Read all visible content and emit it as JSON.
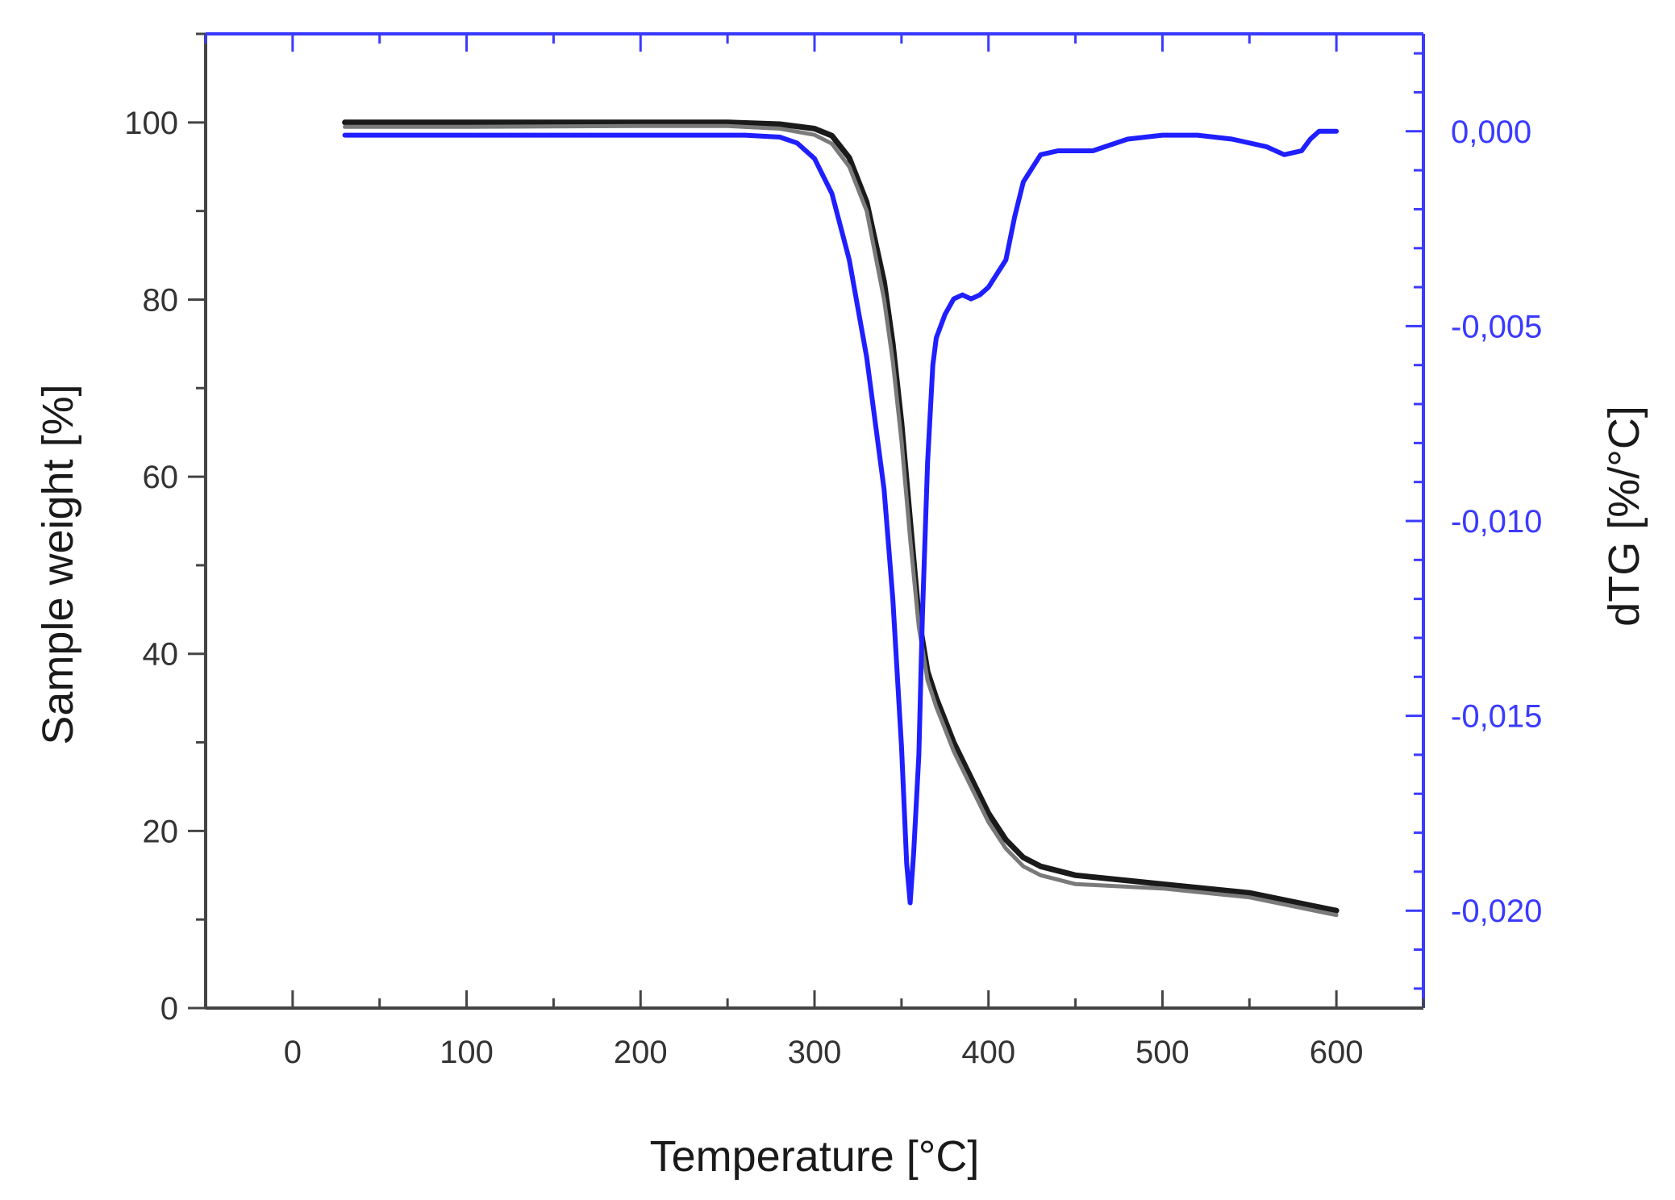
{
  "chart_data": {
    "type": "line",
    "xlabel": "Temperature [°C]",
    "ylabel": "Sample weight [%]",
    "y2label": "dTG [%/°C]",
    "xlim": [
      -50,
      650
    ],
    "ylim": [
      0,
      110
    ],
    "y2lim": [
      -0.0225,
      0.0025
    ],
    "xticks": [
      0,
      100,
      200,
      300,
      400,
      500,
      600
    ],
    "xtick_labels": [
      "0",
      "100",
      "200",
      "300",
      "400",
      "500",
      "600"
    ],
    "yticks": [
      0,
      20,
      40,
      60,
      80,
      100
    ],
    "ytick_labels": [
      "0",
      "20",
      "40",
      "60",
      "80",
      "100"
    ],
    "y2ticks": [
      0.0,
      -0.005,
      -0.01,
      -0.015,
      -0.02
    ],
    "y2tick_labels": [
      "0,000",
      "-0,005",
      "-0,010",
      "-0,015",
      "-0,020"
    ],
    "grid": false,
    "colors": {
      "weight": "#1a1a1a",
      "weight_alt": "#7a7a7a",
      "dtg": "#1f1fff",
      "left_axis": "#444444",
      "right_axis": "#3a3aff"
    },
    "series": [
      {
        "axis": "left",
        "x": [
          30,
          100,
          200,
          250,
          280,
          300,
          310,
          320,
          330,
          340,
          345,
          350,
          355,
          360,
          365,
          370,
          380,
          390,
          400,
          410,
          420,
          430,
          450,
          500,
          550,
          600
        ],
        "y": [
          100,
          100,
          100,
          100,
          99.8,
          99.3,
          98.5,
          96,
          91,
          82,
          75,
          66,
          55,
          44,
          38,
          35,
          30,
          26,
          22,
          19,
          17,
          16,
          15,
          14,
          13,
          11
        ]
      },
      {
        "axis": "left",
        "x": [
          30,
          100,
          200,
          250,
          280,
          300,
          310,
          320,
          330,
          340,
          345,
          350,
          355,
          360,
          365,
          370,
          380,
          390,
          400,
          410,
          420,
          430,
          450,
          500,
          550,
          600
        ],
        "y": [
          99.5,
          99.5,
          99.6,
          99.6,
          99.3,
          98.6,
          97.6,
          95,
          90,
          80,
          73,
          64,
          53,
          43,
          37,
          34,
          29,
          25,
          21,
          18,
          16,
          15,
          14,
          13.5,
          12.5,
          10.5
        ]
      },
      {
        "axis": "right",
        "x": [
          30,
          100,
          200,
          260,
          280,
          290,
          300,
          310,
          320,
          330,
          340,
          345,
          350,
          353,
          355,
          357,
          360,
          362,
          365,
          368,
          370,
          375,
          380,
          385,
          390,
          395,
          400,
          410,
          415,
          420,
          430,
          440,
          460,
          480,
          500,
          520,
          540,
          560,
          570,
          580,
          585,
          590,
          600
        ],
        "y": [
          -0.0001,
          -0.0001,
          -0.0001,
          -0.0001,
          -0.00015,
          -0.0003,
          -0.0007,
          -0.0016,
          -0.0033,
          -0.0058,
          -0.0092,
          -0.012,
          -0.0158,
          -0.0188,
          -0.0198,
          -0.0185,
          -0.016,
          -0.0125,
          -0.0085,
          -0.006,
          -0.0053,
          -0.0047,
          -0.0043,
          -0.0042,
          -0.0043,
          -0.0042,
          -0.004,
          -0.0033,
          -0.0022,
          -0.0013,
          -0.0006,
          -0.0005,
          -0.0005,
          -0.0002,
          -0.0001,
          -0.0001,
          -0.0002,
          -0.0004,
          -0.0006,
          -0.0005,
          -0.0002,
          0.0,
          0.0
        ]
      }
    ]
  }
}
